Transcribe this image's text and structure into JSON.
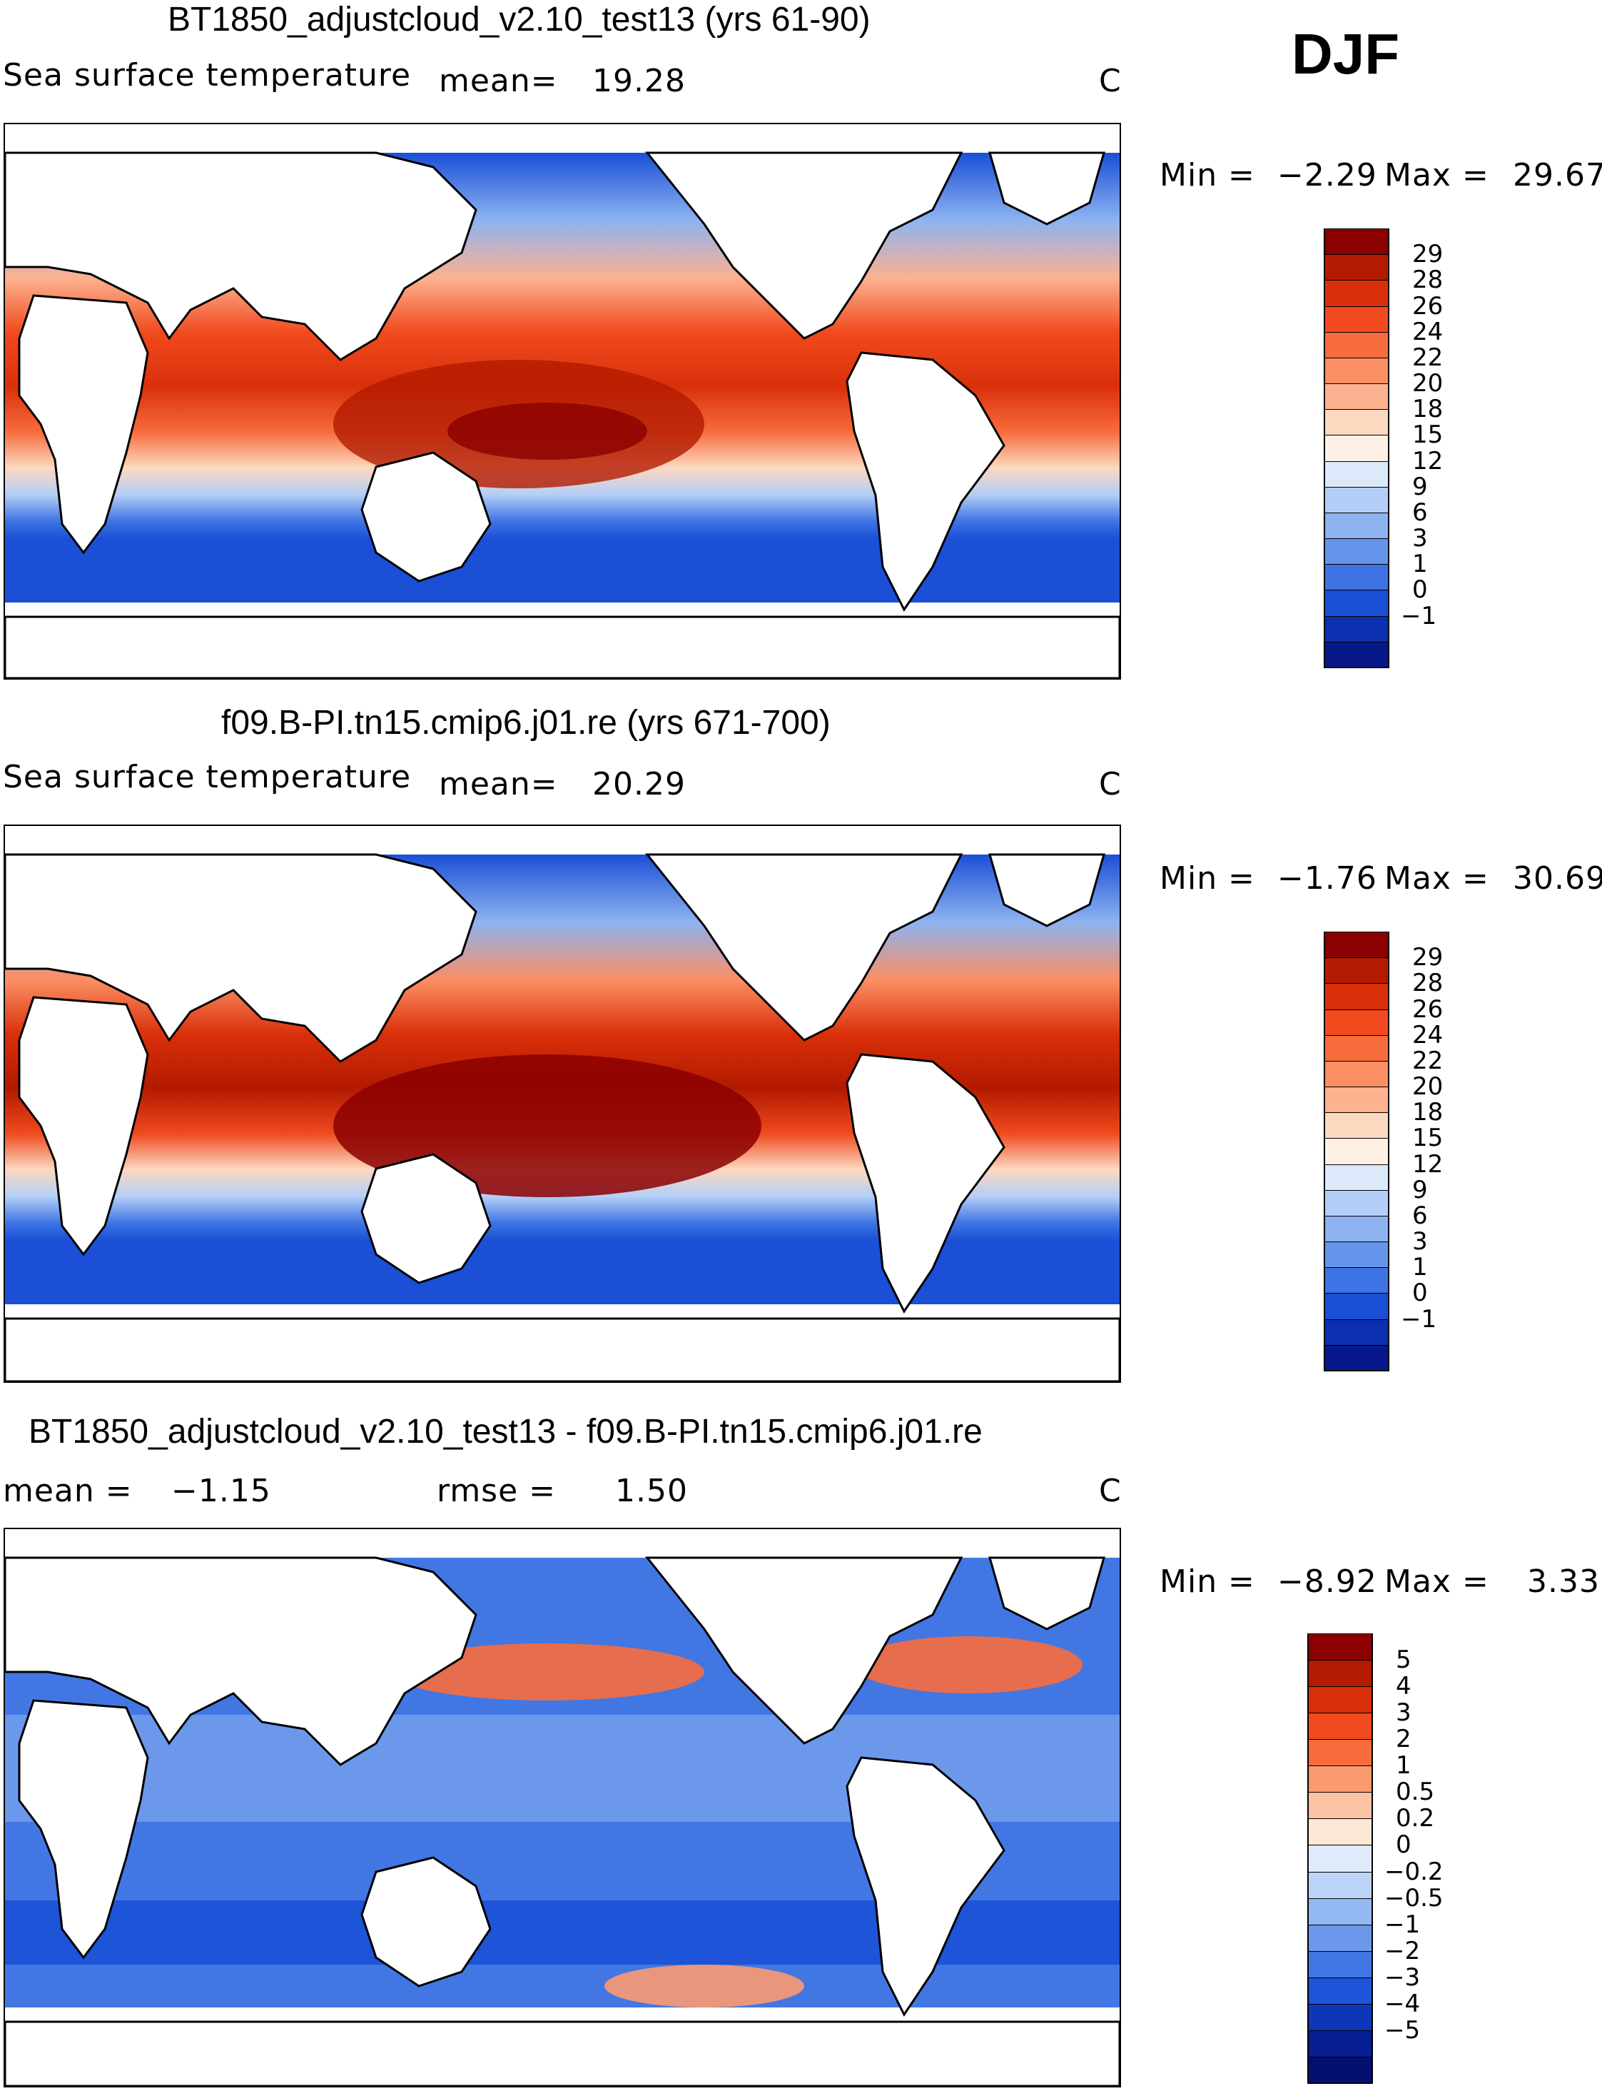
{
  "season": "DJF",
  "panels": [
    {
      "title": "BT1850_adjustcloud_v2.10_test13 (yrs 61-90)",
      "variable": "Sea surface temperature",
      "stat1_label": "mean=",
      "stat1_value": "19.28",
      "units": "C",
      "min_label": "Min =",
      "min_value": "−2.29",
      "max_label": "Max =",
      "max_value": "29.67",
      "colorbar_ticks": [
        "29",
        "28",
        "26",
        "24",
        "22",
        "20",
        "18",
        "15",
        "12",
        "9",
        "6",
        "3",
        "1",
        "0",
        "−1"
      ],
      "colorbar_colors": [
        "#8b0000",
        "#b31a00",
        "#d9300a",
        "#f04a1e",
        "#f86b3c",
        "#fb8e63",
        "#fcb18f",
        "#fdd8c0",
        "#fef0e4",
        "#dbe9fb",
        "#b4cff7",
        "#8db3f1",
        "#6694ea",
        "#3d73e2",
        "#1a4fd6",
        "#0b2fb0",
        "#06188a"
      ]
    },
    {
      "title": "f09.B-PI.tn15.cmip6.j01.re (yrs 671-700)",
      "variable": "Sea surface temperature",
      "stat1_label": "mean=",
      "stat1_value": "20.29",
      "units": "C",
      "min_label": "Min =",
      "min_value": "−1.76",
      "max_label": "Max =",
      "max_value": "30.69",
      "colorbar_ticks": [
        "29",
        "28",
        "26",
        "24",
        "22",
        "20",
        "18",
        "15",
        "12",
        "9",
        "6",
        "3",
        "1",
        "0",
        "−1"
      ],
      "colorbar_colors": [
        "#8b0000",
        "#b31a00",
        "#d9300a",
        "#f04a1e",
        "#f86b3c",
        "#fb8e63",
        "#fcb18f",
        "#fdd8c0",
        "#fef0e4",
        "#dbe9fb",
        "#b4cff7",
        "#8db3f1",
        "#6694ea",
        "#3d73e2",
        "#1a4fd6",
        "#0b2fb0",
        "#06188a"
      ]
    },
    {
      "title": "BT1850_adjustcloud_v2.10_test13 - f09.B-PI.tn15.cmip6.j01.re",
      "stat1_label": "mean =",
      "stat1_value": "−1.15",
      "stat2_label": "rmse =",
      "stat2_value": "1.50",
      "units": "C",
      "min_label": "Min =",
      "min_value": "−8.92",
      "max_label": "Max =",
      "max_value": "3.33",
      "colorbar_ticks": [
        "5",
        "4",
        "3",
        "2",
        "1",
        "0.5",
        "0.2",
        "0",
        "−0.2",
        "−0.5",
        "−1",
        "−2",
        "−3",
        "−4",
        "−5"
      ],
      "colorbar_colors": [
        "#8b0000",
        "#b31a00",
        "#d9300a",
        "#f04a1e",
        "#f86b3c",
        "#fb9a70",
        "#fcc3a4",
        "#fde8d8",
        "#dfebfb",
        "#bcd4f8",
        "#94b8f2",
        "#6b98eb",
        "#4277e3",
        "#1d54d8",
        "#0d36b8",
        "#061e92",
        "#031070"
      ]
    }
  ]
}
